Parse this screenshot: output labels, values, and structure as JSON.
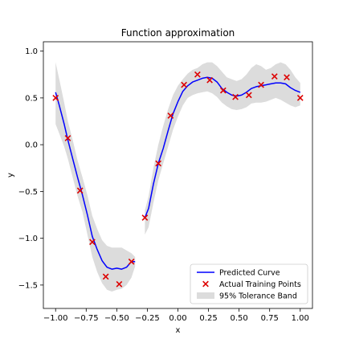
{
  "chart_data": {
    "type": "line",
    "title": "Function approximation",
    "xlabel": "x",
    "ylabel": "y",
    "xlim": [
      -1.1,
      1.1
    ],
    "ylim": [
      -1.75,
      1.1
    ],
    "xticks": [
      -1.0,
      -0.75,
      -0.5,
      -0.25,
      0.0,
      0.25,
      0.5,
      0.75,
      1.0
    ],
    "xtick_labels": [
      "−1.00",
      "−0.75",
      "−0.50",
      "−0.25",
      "0.00",
      "0.25",
      "0.50",
      "0.75",
      "1.00"
    ],
    "yticks": [
      1.0,
      0.5,
      0.0,
      -0.5,
      -1.0,
      -1.5
    ],
    "ytick_labels": [
      "1.0",
      "0.5",
      "0.0",
      "−0.5",
      "−1.0",
      "−1.5"
    ],
    "grid": false,
    "legend_position": "lower-right",
    "series": [
      {
        "name": "Predicted Curve",
        "kind": "line",
        "color": "#0000ff",
        "segments": [
          [
            [
              -1.0,
              0.56
            ],
            [
              -0.97,
              0.42
            ],
            [
              -0.93,
              0.22
            ],
            [
              -0.9,
              0.05
            ],
            [
              -0.86,
              -0.15
            ],
            [
              -0.82,
              -0.35
            ],
            [
              -0.78,
              -0.54
            ],
            [
              -0.74,
              -0.75
            ],
            [
              -0.7,
              -0.98
            ],
            [
              -0.66,
              -1.12
            ],
            [
              -0.62,
              -1.24
            ],
            [
              -0.58,
              -1.31
            ],
            [
              -0.54,
              -1.33
            ],
            [
              -0.5,
              -1.32
            ],
            [
              -0.46,
              -1.33
            ],
            [
              -0.42,
              -1.31
            ],
            [
              -0.38,
              -1.25
            ],
            [
              -0.35,
              -1.25
            ]
          ],
          [
            [
              -0.27,
              -0.78
            ],
            [
              -0.24,
              -0.68
            ],
            [
              -0.2,
              -0.42
            ],
            [
              -0.16,
              -0.2
            ],
            [
              -0.12,
              -0.04
            ],
            [
              -0.08,
              0.15
            ],
            [
              -0.04,
              0.33
            ],
            [
              0.0,
              0.46
            ],
            [
              0.04,
              0.57
            ],
            [
              0.08,
              0.63
            ],
            [
              0.12,
              0.67
            ],
            [
              0.16,
              0.69
            ],
            [
              0.2,
              0.71
            ],
            [
              0.24,
              0.72
            ],
            [
              0.28,
              0.71
            ],
            [
              0.32,
              0.67
            ],
            [
              0.36,
              0.6
            ],
            [
              0.4,
              0.56
            ],
            [
              0.44,
              0.53
            ],
            [
              0.48,
              0.52
            ],
            [
              0.52,
              0.53
            ],
            [
              0.56,
              0.56
            ],
            [
              0.6,
              0.6
            ],
            [
              0.64,
              0.62
            ],
            [
              0.68,
              0.63
            ],
            [
              0.72,
              0.64
            ],
            [
              0.76,
              0.65
            ],
            [
              0.8,
              0.66
            ],
            [
              0.84,
              0.66
            ],
            [
              0.88,
              0.65
            ],
            [
              0.92,
              0.61
            ],
            [
              0.96,
              0.58
            ],
            [
              1.0,
              0.56
            ]
          ]
        ]
      },
      {
        "name": "Actual Training Points",
        "kind": "scatter",
        "color": "#dd0000",
        "x": [
          -1.0,
          -0.9,
          -0.8,
          -0.7,
          -0.59,
          -0.48,
          -0.38,
          -0.27,
          -0.16,
          -0.06,
          0.05,
          0.16,
          0.26,
          0.37,
          0.47,
          0.58,
          0.68,
          0.79,
          0.89,
          1.0
        ],
        "y": [
          0.5,
          0.07,
          -0.49,
          -1.04,
          -1.41,
          -1.49,
          -1.25,
          -0.78,
          -0.2,
          0.31,
          0.64,
          0.75,
          0.69,
          0.58,
          0.51,
          0.53,
          0.64,
          0.73,
          0.72,
          0.5
        ]
      },
      {
        "name": "95% Tolerance Band",
        "kind": "band",
        "color": "#dcdcdc",
        "segments": [
          {
            "x": [
              -1.0,
              -0.97,
              -0.93,
              -0.9,
              -0.86,
              -0.82,
              -0.78,
              -0.74,
              -0.7,
              -0.66,
              -0.62,
              -0.58,
              -0.54,
              -0.5,
              -0.46,
              -0.42,
              -0.38,
              -0.35
            ],
            "upper": [
              0.88,
              0.7,
              0.45,
              0.25,
              0.05,
              -0.17,
              -0.35,
              -0.54,
              -0.76,
              -0.9,
              -1.02,
              -1.08,
              -1.1,
              -1.1,
              -1.1,
              -1.13,
              -1.16,
              -1.2
            ],
            "lower": [
              0.22,
              0.12,
              -0.02,
              -0.15,
              -0.35,
              -0.55,
              -0.72,
              -0.96,
              -1.2,
              -1.36,
              -1.48,
              -1.55,
              -1.57,
              -1.55,
              -1.54,
              -1.5,
              -1.42,
              -1.3
            ]
          },
          {
            "x": [
              -0.27,
              -0.24,
              -0.2,
              -0.16,
              -0.12,
              -0.08,
              -0.04,
              0.0,
              0.04,
              0.08,
              0.12,
              0.16,
              0.2,
              0.24,
              0.28,
              0.32,
              0.36,
              0.4,
              0.44,
              0.48,
              0.52,
              0.56,
              0.6,
              0.64,
              0.68,
              0.72,
              0.76,
              0.8,
              0.84,
              0.88,
              0.92,
              0.96,
              1.0
            ],
            "upper": [
              -0.7,
              -0.55,
              -0.25,
              0.0,
              0.2,
              0.38,
              0.53,
              0.63,
              0.7,
              0.76,
              0.8,
              0.82,
              0.86,
              0.88,
              0.88,
              0.84,
              0.78,
              0.72,
              0.7,
              0.68,
              0.7,
              0.75,
              0.82,
              0.86,
              0.84,
              0.8,
              0.82,
              0.86,
              0.88,
              0.86,
              0.8,
              0.72,
              0.66
            ],
            "lower": [
              -0.96,
              -0.88,
              -0.62,
              -0.38,
              -0.2,
              -0.02,
              0.16,
              0.3,
              0.42,
              0.5,
              0.53,
              0.55,
              0.56,
              0.57,
              0.55,
              0.51,
              0.45,
              0.41,
              0.38,
              0.37,
              0.38,
              0.4,
              0.44,
              0.45,
              0.45,
              0.46,
              0.48,
              0.5,
              0.48,
              0.45,
              0.42,
              0.4,
              0.42
            ]
          }
        ]
      }
    ]
  }
}
